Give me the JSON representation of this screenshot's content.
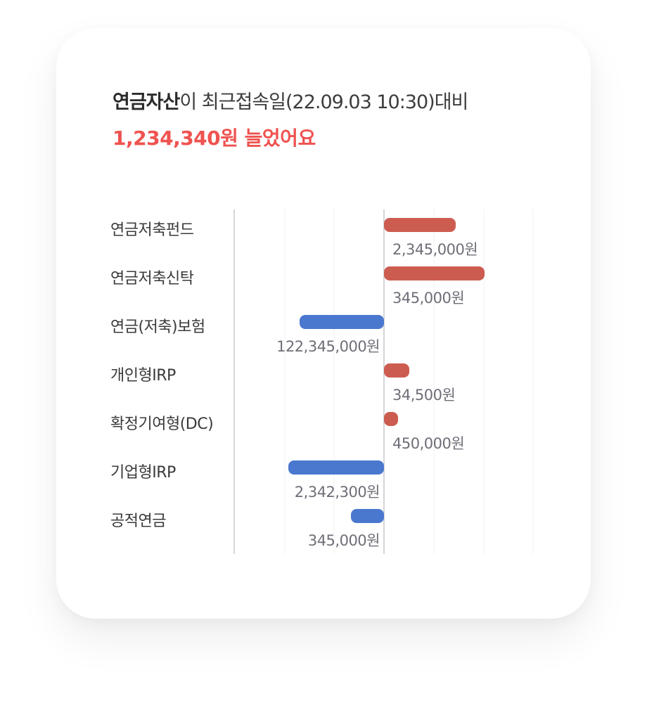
{
  "header": {
    "asset_label": "연금자산",
    "comparison_text": "이 최근접속일(22.09.03 10:30)대비",
    "change_text": "1,234,340원 늘었어요"
  },
  "colors": {
    "positive": "#cd5c50",
    "negative": "#4a78cf",
    "highlight": "#ef5350",
    "label": "#6e6e78",
    "text": "#333333"
  },
  "chart_data": {
    "type": "bar",
    "orientation": "horizontal",
    "categories": [
      "연금저축펀드",
      "연금저축신탁",
      "연금(저축)보험",
      "개인형IRP",
      "확정기여형(DC)",
      "기업형IRP",
      "공적연금"
    ],
    "values": [
      2345000,
      345000,
      -122345000,
      34500,
      450000,
      -2342300,
      -345000
    ],
    "value_labels": [
      "2,345,000원",
      "345,000원",
      "122,345,000원",
      "34,500원",
      "450,000원",
      "2,342,300원",
      "345,000원"
    ],
    "grid": true,
    "axis_ticks_shown": false
  }
}
